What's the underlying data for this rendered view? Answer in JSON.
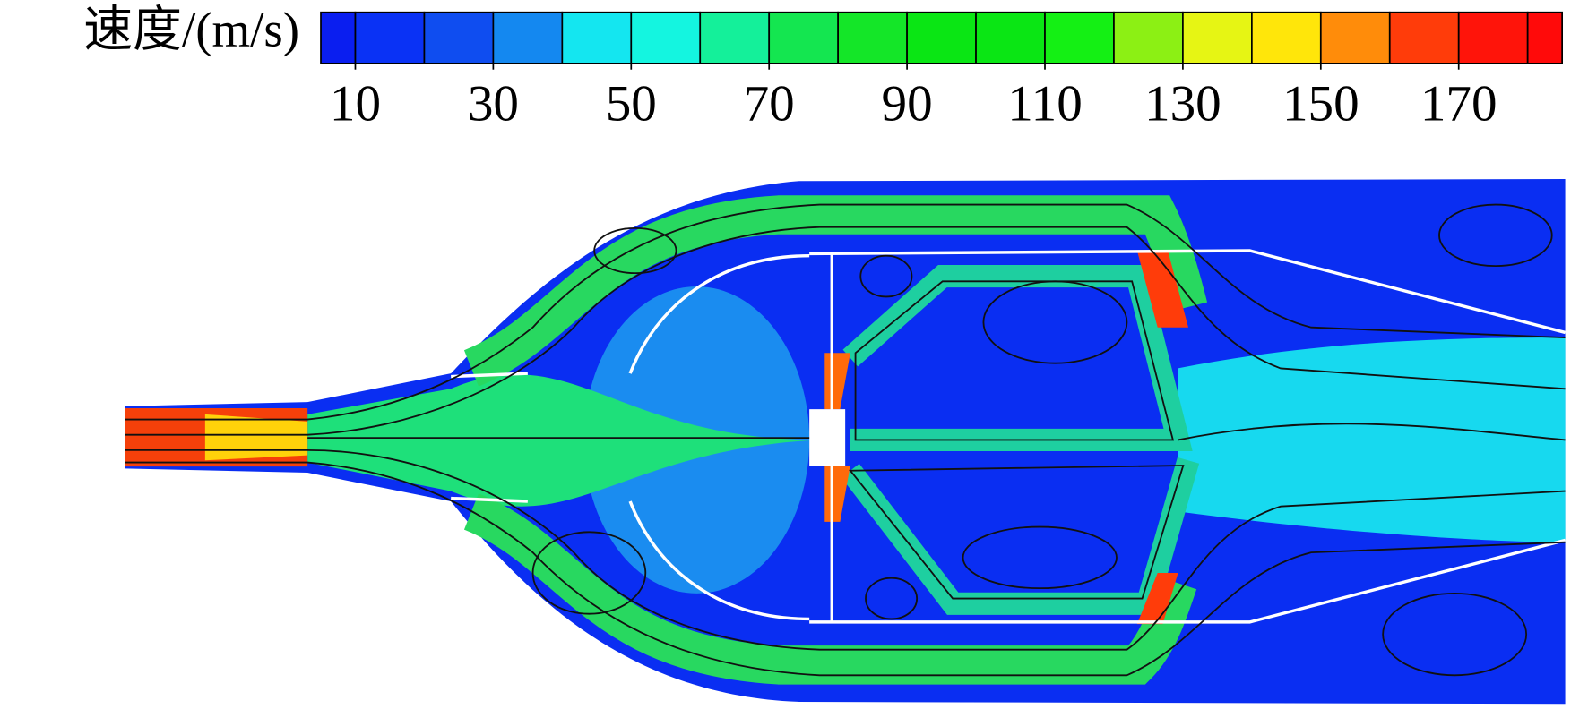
{
  "colorbar": {
    "label": "速度/(m/s)",
    "bounds": [
      5,
      10,
      20,
      30,
      40,
      50,
      60,
      70,
      80,
      90,
      100,
      110,
      120,
      130,
      140,
      150,
      160,
      170,
      180,
      185
    ],
    "colors": [
      "#0a1ef0",
      "#0a32f5",
      "#0f4df0",
      "#1488f0",
      "#14e6f0",
      "#14f5e0",
      "#14f09a",
      "#14e650",
      "#14e628",
      "#0ae614",
      "#0ae614",
      "#14f014",
      "#8cf014",
      "#e6f514",
      "#ffe60a",
      "#ff8c0a",
      "#ff3c0a",
      "#ff140a",
      "#ff0a0a"
    ],
    "ticks": [
      10,
      30,
      50,
      70,
      90,
      110,
      130,
      150,
      170
    ]
  }
}
